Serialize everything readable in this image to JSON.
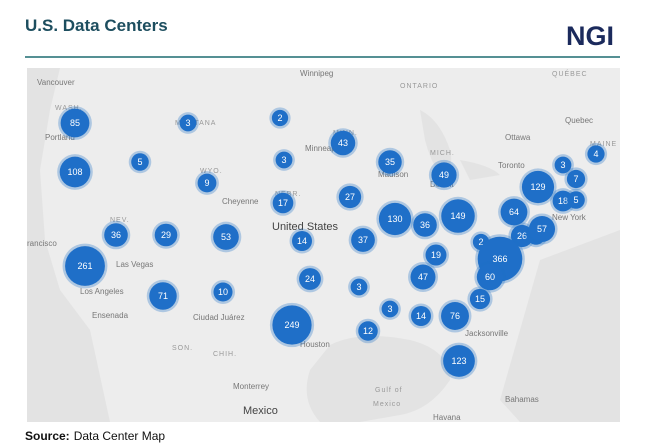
{
  "header": {
    "title": "U.S. Data Centers",
    "logo": "NGI"
  },
  "map": {
    "labels": [
      "Vancouver",
      "Winnipeg",
      "ONTARIO",
      "QUÉBEC",
      "WASH.",
      "Portland",
      "MONTANA",
      "MINN.",
      "Minneapolis",
      "Ottawa",
      "Quebec",
      "MAINE",
      "Toronto",
      "MICH.",
      "Madison",
      "Detroit",
      "WYO.",
      "Cheyenne",
      "NEBR.",
      "United States",
      "NEV.",
      "Las Vegas",
      "rancisco",
      "Los Angeles",
      "New York",
      "Ensenada",
      "Ciudad Juárez",
      "SON.",
      "CHIH.",
      "Houston",
      "Jacksonville",
      "Monterrey",
      "Mexico",
      "Gulf of",
      "Mexico",
      "Bahamas",
      "Havana"
    ],
    "clusters": [
      85,
      3,
      2,
      43,
      108,
      5,
      3,
      35,
      49,
      129,
      3,
      4,
      7,
      9,
      17,
      27,
      18,
      5,
      64,
      130,
      149,
      36,
      36,
      29,
      53,
      14,
      37,
      2,
      26,
      5,
      57,
      261,
      366,
      19,
      60,
      47,
      24,
      3,
      71,
      10,
      15,
      3,
      14,
      76,
      249,
      12,
      123
    ]
  },
  "source": {
    "label": "Source:",
    "text": "Data Center Map"
  }
}
